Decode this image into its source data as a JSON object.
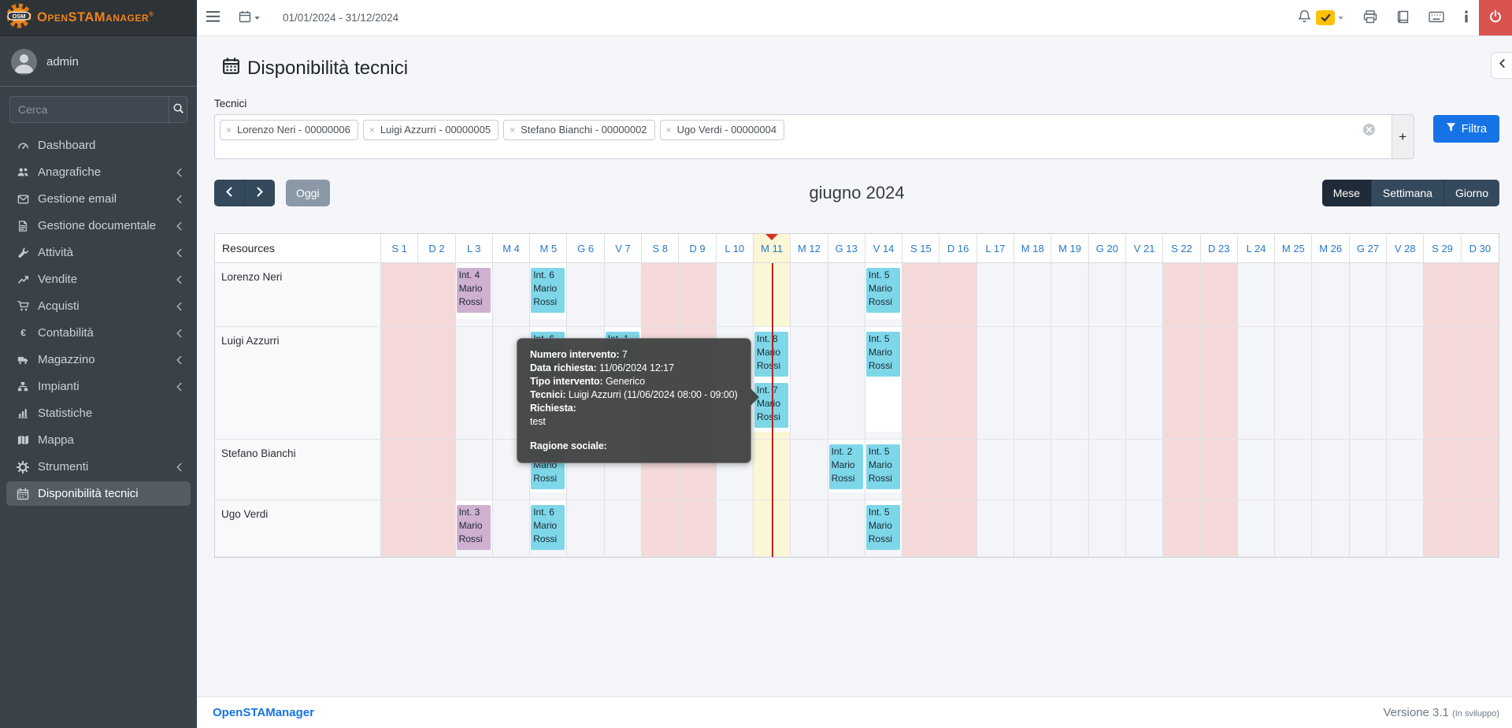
{
  "brand": {
    "logo": "OSM",
    "title": "OpenSTAManager",
    "registered": "®"
  },
  "topbar": {
    "date_range": "01/01/2024 - 31/12/2024"
  },
  "sidebar": {
    "user": "admin",
    "search_placeholder": "Cerca",
    "items": [
      {
        "label": "Dashboard",
        "icon": "gauge-icon",
        "children": false,
        "active": false
      },
      {
        "label": "Anagrafiche",
        "icon": "users-icon",
        "children": true,
        "active": false
      },
      {
        "label": "Gestione email",
        "icon": "envelope-icon",
        "children": true,
        "active": false
      },
      {
        "label": "Gestione documentale",
        "icon": "document-icon",
        "children": true,
        "active": false
      },
      {
        "label": "Attività",
        "icon": "wrench-icon",
        "children": true,
        "active": false
      },
      {
        "label": "Vendite",
        "icon": "chart-line-icon",
        "children": true,
        "active": false
      },
      {
        "label": "Acquisti",
        "icon": "cart-icon",
        "children": true,
        "active": false
      },
      {
        "label": "Contabilità",
        "icon": "euro-icon",
        "children": true,
        "active": false
      },
      {
        "label": "Magazzino",
        "icon": "truck-icon",
        "children": true,
        "active": false
      },
      {
        "label": "Impianti",
        "icon": "sitemap-icon",
        "children": true,
        "active": false
      },
      {
        "label": "Statistiche",
        "icon": "bar-chart-icon",
        "children": false,
        "active": false
      },
      {
        "label": "Mappa",
        "icon": "map-icon",
        "children": false,
        "active": false
      },
      {
        "label": "Strumenti",
        "icon": "gear-icon",
        "children": true,
        "active": false
      },
      {
        "label": "Disponibilità tecnici",
        "icon": "calendar-icon",
        "children": false,
        "active": true
      }
    ]
  },
  "page": {
    "title": "Disponibilità tecnici",
    "field_label": "Tecnici",
    "technicians": [
      "Lorenzo Neri - 00000006",
      "Luigi Azzurri - 00000005",
      "Stefano Bianchi - 00000002",
      "Ugo Verdi - 00000004"
    ],
    "add_button": "+",
    "filter_button": "Filtra"
  },
  "toolbar": {
    "today": "Oggi",
    "title": "giugno 2024",
    "views": [
      {
        "label": "Mese",
        "active": true
      },
      {
        "label": "Settimana",
        "active": false
      },
      {
        "label": "Giorno",
        "active": false
      }
    ]
  },
  "calendar": {
    "resources_label": "Resources",
    "today_index": 10,
    "days": [
      "S 1",
      "D 2",
      "L 3",
      "M 4",
      "M 5",
      "G 6",
      "V 7",
      "S 8",
      "D 9",
      "L 10",
      "M 11",
      "M 12",
      "G 13",
      "V 14",
      "S 15",
      "D 16",
      "L 17",
      "M 18",
      "M 19",
      "G 20",
      "V 21",
      "S 22",
      "D 23",
      "L 24",
      "M 25",
      "M 26",
      "G 27",
      "V 28",
      "S 29",
      "D 30"
    ],
    "resources": [
      {
        "name": "Lorenzo Neri",
        "events": [
          {
            "day": 2,
            "lines": [
              "Int. 4",
              "Mario",
              "Rossi"
            ],
            "color": "plum",
            "slot": 0
          },
          {
            "day": 4,
            "lines": [
              "Int. 6",
              "Mario",
              "Rossi"
            ],
            "color": "cyan",
            "slot": 0
          },
          {
            "day": 13,
            "lines": [
              "Int. 5",
              "Mario",
              "Rossi"
            ],
            "color": "cyan",
            "slot": 0
          }
        ]
      },
      {
        "name": "Luigi Azzurri",
        "events": [
          {
            "day": 4,
            "lines": [
              "Int. 6",
              "Mario",
              "Rossi"
            ],
            "color": "cyan",
            "slot": 0
          },
          {
            "day": 6,
            "lines": [
              "Int. 1",
              "Mario",
              "Rossi"
            ],
            "color": "cyan",
            "slot": 0
          },
          {
            "day": 10,
            "lines": [
              "Int. 8",
              "Mario",
              "Rossi"
            ],
            "color": "cyan",
            "slot": 0
          },
          {
            "day": 10,
            "lines": [
              "Int. 7",
              "Mario",
              "Rossi"
            ],
            "color": "cyan",
            "slot": 1
          },
          {
            "day": 13,
            "lines": [
              "Int. 5",
              "Mario",
              "Rossi"
            ],
            "color": "cyan",
            "slot": 0
          }
        ]
      },
      {
        "name": "Stefano Bianchi",
        "events": [
          {
            "day": 4,
            "lines": [
              "",
              "Mario",
              "Rossi"
            ],
            "color": "cyan",
            "slot": 0
          },
          {
            "day": 12,
            "lines": [
              "Int. 2",
              "Mario",
              "Rossi"
            ],
            "color": "cyan",
            "slot": 0
          },
          {
            "day": 13,
            "lines": [
              "Int. 5",
              "Mario",
              "Rossi"
            ],
            "color": "cyan",
            "slot": 0
          }
        ]
      },
      {
        "name": "Ugo Verdi",
        "events": [
          {
            "day": 2,
            "lines": [
              "Int. 3",
              "Mario",
              "Rossi"
            ],
            "color": "plum",
            "slot": 0
          },
          {
            "day": 4,
            "lines": [
              "Int. 6",
              "Mario",
              "Rossi"
            ],
            "color": "cyan",
            "slot": 0
          },
          {
            "day": 13,
            "lines": [
              "Int. 5",
              "Mario",
              "Rossi"
            ],
            "color": "cyan",
            "slot": 0
          }
        ]
      }
    ]
  },
  "tooltip": {
    "fields": [
      {
        "label": "Numero intervento:",
        "value": "7"
      },
      {
        "label": "Data richiesta:",
        "value": "11/06/2024 12:17"
      },
      {
        "label": "Tipo intervento:",
        "value": "Generico"
      },
      {
        "label": "Tecnici:",
        "value": "Luigi Azzurri (11/06/2024 08:00 - 09:00)"
      },
      {
        "label": "Richiesta:",
        "value": ""
      }
    ],
    "request_text": "test",
    "footer_label": "Ragione sociale:"
  },
  "footer": {
    "brand": "OpenSTAManager",
    "version": "Versione 3.1",
    "version_note": "(In sviluppo)"
  },
  "colors": {
    "accent_orange": "#ef8318",
    "primary_blue": "#1673e6",
    "event_cyan": "#7ed7e8",
    "event_plum": "#cfb0d0",
    "weekend_bg": "#f4d9d8",
    "today_bg": "#fbf6d5",
    "today_line": "#b3231d",
    "logout_red": "#d9534f",
    "badge_yellow": "#ffc107"
  }
}
